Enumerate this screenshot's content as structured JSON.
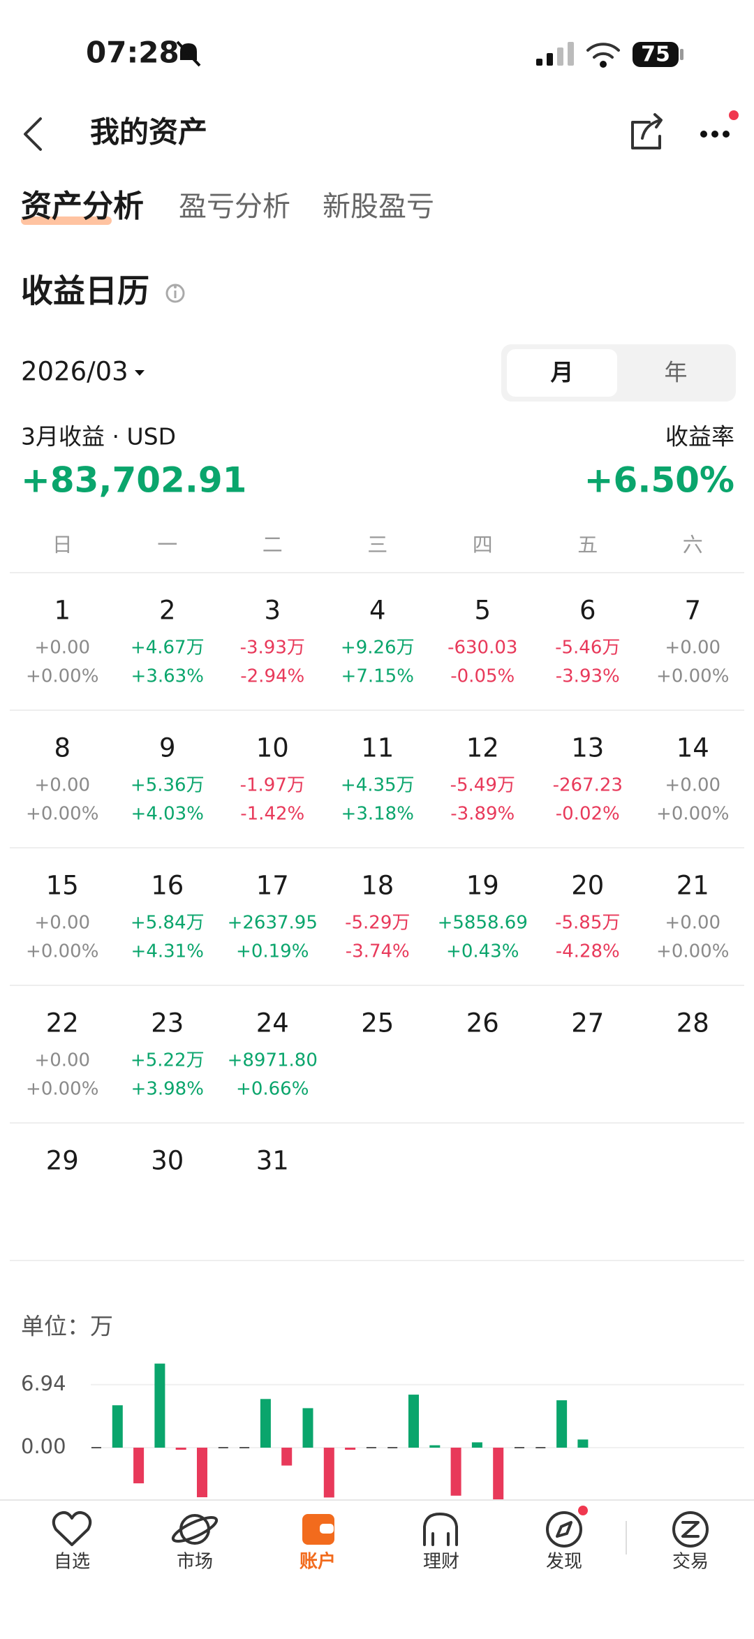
{
  "status_bar": {
    "time": "07:28",
    "battery": "75"
  },
  "header": {
    "title": "我的资产"
  },
  "tabs": [
    "资产分析",
    "盈亏分析",
    "新股盈亏"
  ],
  "calendar": {
    "title": "收益日历",
    "month": "2026/03",
    "toggle": [
      "月",
      "年"
    ],
    "period_label": "3月收益 · USD",
    "period_pnl": "+83,702.91",
    "rate_label": "收益率",
    "period_rate": "+6.50%",
    "weekdays": [
      "日",
      "一",
      "二",
      "三",
      "四",
      "五",
      "六"
    ],
    "days": [
      {
        "day": 1,
        "pnl": "+0.00",
        "rate": "+0.00%"
      },
      {
        "day": 2,
        "pnl": "+4.67万",
        "rate": "+3.63%"
      },
      {
        "day": 3,
        "pnl": "-3.93万",
        "rate": "-2.94%"
      },
      {
        "day": 4,
        "pnl": "+9.26万",
        "rate": "+7.15%"
      },
      {
        "day": 5,
        "pnl": "-630.03",
        "rate": "-0.05%"
      },
      {
        "day": 6,
        "pnl": "-5.46万",
        "rate": "-3.93%"
      },
      {
        "day": 7,
        "pnl": "+0.00",
        "rate": "+0.00%"
      },
      {
        "day": 8,
        "pnl": "+0.00",
        "rate": "+0.00%"
      },
      {
        "day": 9,
        "pnl": "+5.36万",
        "rate": "+4.03%"
      },
      {
        "day": 10,
        "pnl": "-1.97万",
        "rate": "-1.42%"
      },
      {
        "day": 11,
        "pnl": "+4.35万",
        "rate": "+3.18%"
      },
      {
        "day": 12,
        "pnl": "-5.49万",
        "rate": "-3.89%"
      },
      {
        "day": 13,
        "pnl": "-267.23",
        "rate": "-0.02%"
      },
      {
        "day": 14,
        "pnl": "+0.00",
        "rate": "+0.00%"
      },
      {
        "day": 15,
        "pnl": "+0.00",
        "rate": "+0.00%"
      },
      {
        "day": 16,
        "pnl": "+5.84万",
        "rate": "+4.31%"
      },
      {
        "day": 17,
        "pnl": "+2637.95",
        "rate": "+0.19%"
      },
      {
        "day": 18,
        "pnl": "-5.29万",
        "rate": "-3.74%"
      },
      {
        "day": 19,
        "pnl": "+5858.69",
        "rate": "+0.43%"
      },
      {
        "day": 20,
        "pnl": "-5.85万",
        "rate": "-4.28%"
      },
      {
        "day": 21,
        "pnl": "+0.00",
        "rate": "+0.00%"
      },
      {
        "day": 22,
        "pnl": "+0.00",
        "rate": "+0.00%"
      },
      {
        "day": 23,
        "pnl": "+5.22万",
        "rate": "+3.98%"
      },
      {
        "day": 24,
        "pnl": "+8971.80",
        "rate": "+0.66%"
      },
      {
        "day": 25
      },
      {
        "day": 26
      },
      {
        "day": 27
      },
      {
        "day": 28
      },
      {
        "day": 29
      },
      {
        "day": 30
      },
      {
        "day": 31
      }
    ]
  },
  "chart_unit": "单位：万",
  "chart_data": {
    "type": "bar",
    "values": [
      0,
      4.67,
      -3.93,
      9.26,
      -0.063003,
      -5.46,
      0,
      0,
      5.36,
      -1.97,
      4.35,
      -5.49,
      -0.026723,
      0,
      0,
      5.84,
      0.263795,
      -5.29,
      0.585869,
      -5.85,
      0,
      0,
      5.22,
      0.89718
    ],
    "ylim": [
      -8,
      10
    ],
    "yticks": [
      6.94,
      {
        "value": 0,
        "label": "0.00"
      }
    ],
    "grid": true,
    "colors": {
      "up": "#0aa56c",
      "down": "#e8395a",
      "zero": "#555555"
    }
  },
  "nav": {
    "items": [
      "自选",
      "市场",
      "账户",
      "理财",
      "发现",
      "交易"
    ],
    "active": 2
  }
}
